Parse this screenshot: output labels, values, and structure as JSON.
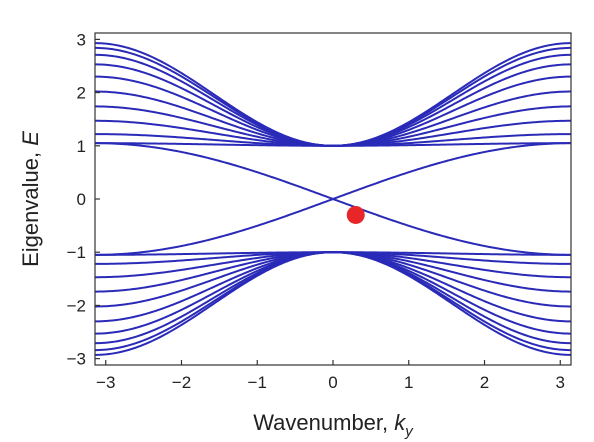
{
  "chart_data": {
    "type": "line",
    "title": "",
    "xlabel": "Wavenumber, ",
    "xlabel_var": "k",
    "xlabel_sub": "y",
    "ylabel": "Eigenvalue, ",
    "ylabel_var": "E",
    "xlim": [
      -3.14159,
      3.14159
    ],
    "ylim": [
      -3.0,
      3.0
    ],
    "x_ticks": [
      -3,
      -2,
      -1,
      0,
      1,
      2,
      3
    ],
    "x_tick_labels": [
      "−3",
      "−2",
      "−1",
      "0",
      "1",
      "2",
      "3"
    ],
    "y_ticks": [
      -3,
      -2,
      -1,
      0,
      1,
      2,
      3
    ],
    "y_tick_labels": [
      "−3",
      "−2",
      "−1",
      "0",
      "1",
      "2",
      "3"
    ],
    "grid": false,
    "line_color": "#2a2ab8",
    "marker_color": "#e8262a",
    "bulk_bands": {
      "edge_energy_at_0": 1.0,
      "energy_at_pi": [
        1.05,
        1.22,
        1.47,
        1.74,
        2.02,
        2.3,
        2.53,
        2.71,
        2.84,
        2.93
      ],
      "symmetric_negative": true
    },
    "edge_states": {
      "description_values": "crossing at k=0, E=0; reach ±1.05 at k=±pi",
      "crossing": [
        0,
        0
      ],
      "endpoints": [
        [
          -3.14159,
          1.05
        ],
        [
          3.14159,
          -1.05
        ],
        [
          -3.14159,
          -1.05
        ],
        [
          3.14159,
          1.05
        ]
      ]
    },
    "marker_point": {
      "x": 0.3,
      "y": -0.3
    }
  }
}
